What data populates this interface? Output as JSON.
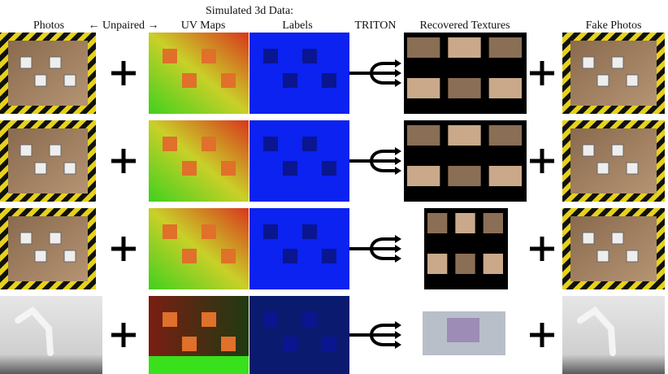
{
  "figure": {
    "headers": {
      "photos": "Photos",
      "unpaired": "← Unpaired →",
      "simulated": "Simulated 3d Data:",
      "uv_maps": "UV Maps",
      "labels": "Labels",
      "triton": "TRITON",
      "recovered": "Recovered Textures",
      "fake_photos": "Fake Photos"
    }
  }
}
